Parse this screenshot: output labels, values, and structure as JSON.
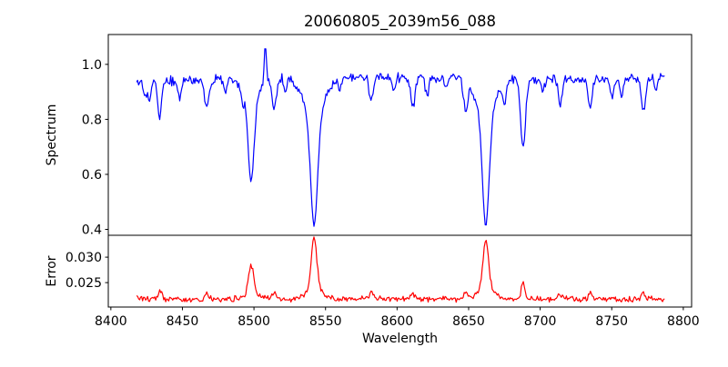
{
  "chart_data": {
    "type": "line",
    "title": "20060805_2039m56_088",
    "xlabel": "Wavelength",
    "grid": false,
    "legend": null,
    "xlim": [
      8398.2,
      8805.8
    ],
    "xticks": [
      8400,
      8450,
      8500,
      8550,
      8600,
      8650,
      8700,
      8750,
      8800
    ],
    "xtick_labels": [
      "8400",
      "8450",
      "8500",
      "8550",
      "8600",
      "8650",
      "8700",
      "8750",
      "8800"
    ],
    "x_data_range": [
      8418,
      8787
    ],
    "noise_seed": 20060805,
    "panels": [
      {
        "name": "spectrum",
        "ylabel": "Spectrum",
        "color": "#0000ff",
        "ylim": [
          0.3785,
          1.1085
        ],
        "yticks": [
          0.4,
          0.6,
          0.8,
          1.0
        ],
        "ytick_labels": [
          "0.4",
          "0.6",
          "0.8",
          "1.0"
        ],
        "continuum_points": [
          [
            8418,
            0.935
          ],
          [
            8470,
            0.945
          ],
          [
            8530,
            0.95
          ],
          [
            8600,
            0.955
          ],
          [
            8660,
            0.95
          ],
          [
            8720,
            0.945
          ],
          [
            8787,
            0.95
          ]
        ],
        "noise_amplitude": 0.021,
        "absorption_lines": [
          [
            8424,
            0.06,
            1.2
          ],
          [
            8427,
            0.07,
            1.0
          ],
          [
            8434,
            0.13,
            1.3
          ],
          [
            8448,
            0.06,
            1.2
          ],
          [
            8467,
            0.1,
            1.5
          ],
          [
            8480,
            0.04,
            1.0
          ],
          [
            8492,
            0.05,
            1.0
          ],
          [
            8498,
            0.28,
            2.0
          ],
          [
            8498,
            0.09,
            5.0
          ],
          [
            8508,
            -0.125,
            0.7
          ],
          [
            8514,
            0.11,
            1.5
          ],
          [
            8522,
            0.05,
            1.0
          ],
          [
            8542,
            0.4,
            2.4
          ],
          [
            8542,
            0.138,
            7.0
          ],
          [
            8560,
            0.04,
            1.0
          ],
          [
            8582,
            0.09,
            1.4
          ],
          [
            8598,
            0.05,
            1.1
          ],
          [
            8611,
            0.11,
            1.5
          ],
          [
            8621,
            0.07,
            1.2
          ],
          [
            8634,
            0.05,
            1.0
          ],
          [
            8648,
            0.11,
            1.5
          ],
          [
            8662,
            0.4,
            2.3
          ],
          [
            8662,
            0.135,
            6.5
          ],
          [
            8675,
            0.08,
            1.2
          ],
          [
            8688,
            0.25,
            1.7
          ],
          [
            8702,
            0.05,
            1.0
          ],
          [
            8714,
            0.09,
            1.3
          ],
          [
            8735,
            0.1,
            1.4
          ],
          [
            8750,
            0.07,
            1.2
          ],
          [
            8757,
            0.06,
            1.1
          ],
          [
            8772,
            0.12,
            1.5
          ],
          [
            8781,
            0.05,
            1.0
          ]
        ]
      },
      {
        "name": "error",
        "ylabel": "Error",
        "color": "#ff0000",
        "ylim": [
          0.0202,
          0.0343
        ],
        "yticks": [
          0.025,
          0.03
        ],
        "ytick_labels": [
          "0.025",
          "0.030"
        ],
        "baseline": 0.0218,
        "noise_amplitude": 0.0007,
        "peaks": [
          [
            8434,
            0.0014,
            1.5
          ],
          [
            8467,
            0.001,
            1.5
          ],
          [
            8498,
            0.0056,
            1.8
          ],
          [
            8498,
            0.001,
            5.0
          ],
          [
            8514,
            0.0012,
            1.5
          ],
          [
            8542,
            0.01,
            1.9
          ],
          [
            8542,
            0.0019,
            6.0
          ],
          [
            8582,
            0.0014,
            1.5
          ],
          [
            8611,
            0.001,
            1.5
          ],
          [
            8648,
            0.001,
            1.5
          ],
          [
            8662,
            0.0098,
            1.9
          ],
          [
            8662,
            0.0019,
            6.0
          ],
          [
            8688,
            0.0036,
            1.2
          ],
          [
            8714,
            0.0008,
            1.3
          ],
          [
            8735,
            0.001,
            1.4
          ],
          [
            8772,
            0.0012,
            1.5
          ]
        ]
      }
    ]
  }
}
